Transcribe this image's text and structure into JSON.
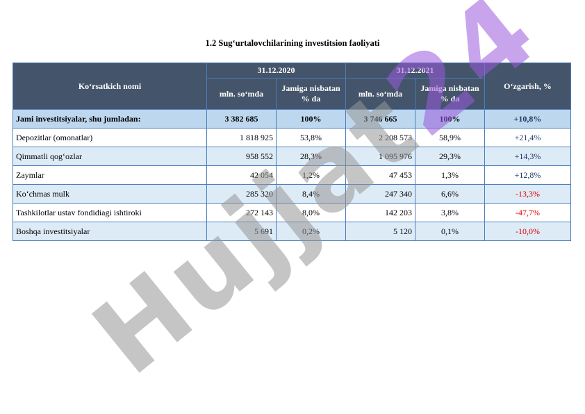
{
  "title": "1.2 Sug‘urtalovchilarining investitsion faoliyati",
  "header": {
    "name_col": "Ko‘rsatkich nomi",
    "date1": "31.12.2020",
    "date2": "31.12.2021",
    "amount_col": "mln. so‘mda",
    "share_col": "Jamiga nisbatan % da",
    "change_col": "O‘zgarish, %"
  },
  "rows": [
    {
      "name": "Jami investitsiyalar, shu jumladan:",
      "v2020": "3 382 685",
      "p2020": "100%",
      "v2021": "3 746 665",
      "p2021": "100%",
      "change": "+10,8%"
    },
    {
      "name": "Depozitlar (omonatlar)",
      "v2020": "1 818 925",
      "p2020": "53,8%",
      "v2021": "2 208 573",
      "p2021": "58,9%",
      "change": "+21,4%"
    },
    {
      "name": "Qimmatli qog‘ozlar",
      "v2020": "958 552",
      "p2020": "28,3%",
      "v2021": "1 095 976",
      "p2021": "29,3%",
      "change": "+14,3%"
    },
    {
      "name": "Zaymlar",
      "v2020": "42 054",
      "p2020": "1,2%",
      "v2021": "47 453",
      "p2021": "1,3%",
      "change": "+12,8%"
    },
    {
      "name": "Ko‘chmas mulk",
      "v2020": "285 320",
      "p2020": "8,4%",
      "v2021": "247 340",
      "p2021": "6,6%",
      "change": "-13,3%"
    },
    {
      "name": "Tashkilotlar ustav fondidiagi ishtiroki",
      "v2020": "272 143",
      "p2020": "8,0%",
      "v2021": "142 203",
      "p2021": "3,8%",
      "change": "-47,7%"
    },
    {
      "name": "Boshqa investitsiyalar",
      "v2020": "5 691",
      "p2020": "0,2%",
      "v2021": "5 120",
      "p2021": "0,1%",
      "change": "-10,0%"
    }
  ],
  "watermark": {
    "part1": "Hujjat",
    "part2": "24"
  },
  "colors": {
    "header_bg": "#44546a",
    "total_bg": "#bdd7ee",
    "alt_bg": "#ddebf7",
    "border": "#4a7ebb",
    "negative": "#e00000",
    "positive": "#1f3864"
  }
}
